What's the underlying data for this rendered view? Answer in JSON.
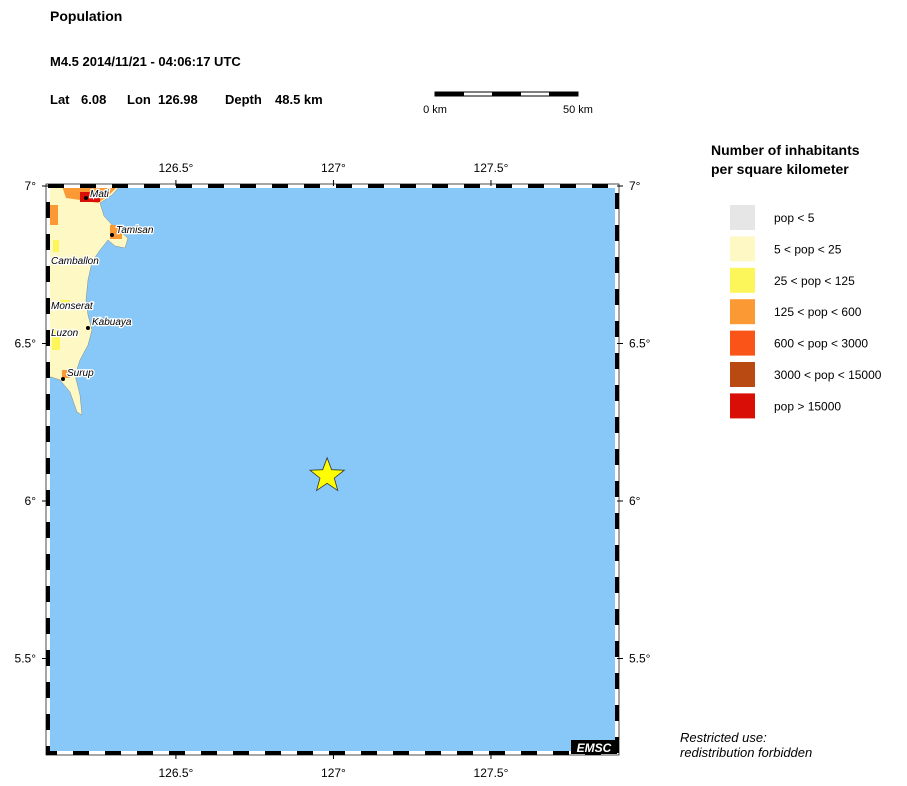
{
  "header": {
    "title": "Population",
    "event": "M4.5  2014/11/21 - 04:06:17 UTC",
    "lat_label": "Lat",
    "lat": 6.08,
    "lon_label": "Lon",
    "lon": 126.98,
    "depth_label": "Depth",
    "depth": "48.5 km"
  },
  "scale_bar": {
    "start": "0 km",
    "end": "50 km"
  },
  "map": {
    "xlim": [
      126.094,
      127.9
    ],
    "ylim": [
      5.2,
      7.0
    ],
    "xticks": [
      {
        "value": 126.5,
        "label": "126.5°"
      },
      {
        "value": 127,
        "label": "127°"
      },
      {
        "value": 127.5,
        "label": "127.5°"
      }
    ],
    "yticks": [
      {
        "value": 7,
        "label": "7°"
      },
      {
        "value": 6.5,
        "label": "6.5°"
      },
      {
        "value": 6,
        "label": "6°"
      },
      {
        "value": 5.5,
        "label": "5.5°"
      }
    ],
    "places": [
      "Mati",
      "Tamisan",
      "Camballon",
      "Monserat",
      "Kabuaya",
      "Luzon",
      "Surup"
    ],
    "credit": "EMSC"
  },
  "legend": {
    "title": [
      "Number of inhabitants",
      "per square kilometer"
    ],
    "items": [
      {
        "label": "pop < 5",
        "color": "#e6e6e6"
      },
      {
        "label": "5 < pop < 25",
        "color": "#fdf8c4"
      },
      {
        "label": "25 < pop < 125",
        "color": "#fdf65a"
      },
      {
        "label": "125 < pop < 600",
        "color": "#fb9a35"
      },
      {
        "label": "600 < pop < 3000",
        "color": "#fb5418"
      },
      {
        "label": "3000 < pop < 15000",
        "color": "#b94a12"
      },
      {
        "label": "pop > 15000",
        "color": "#d90e06"
      }
    ]
  },
  "footer": [
    "Restricted use:",
    "redistribution forbidden"
  ]
}
